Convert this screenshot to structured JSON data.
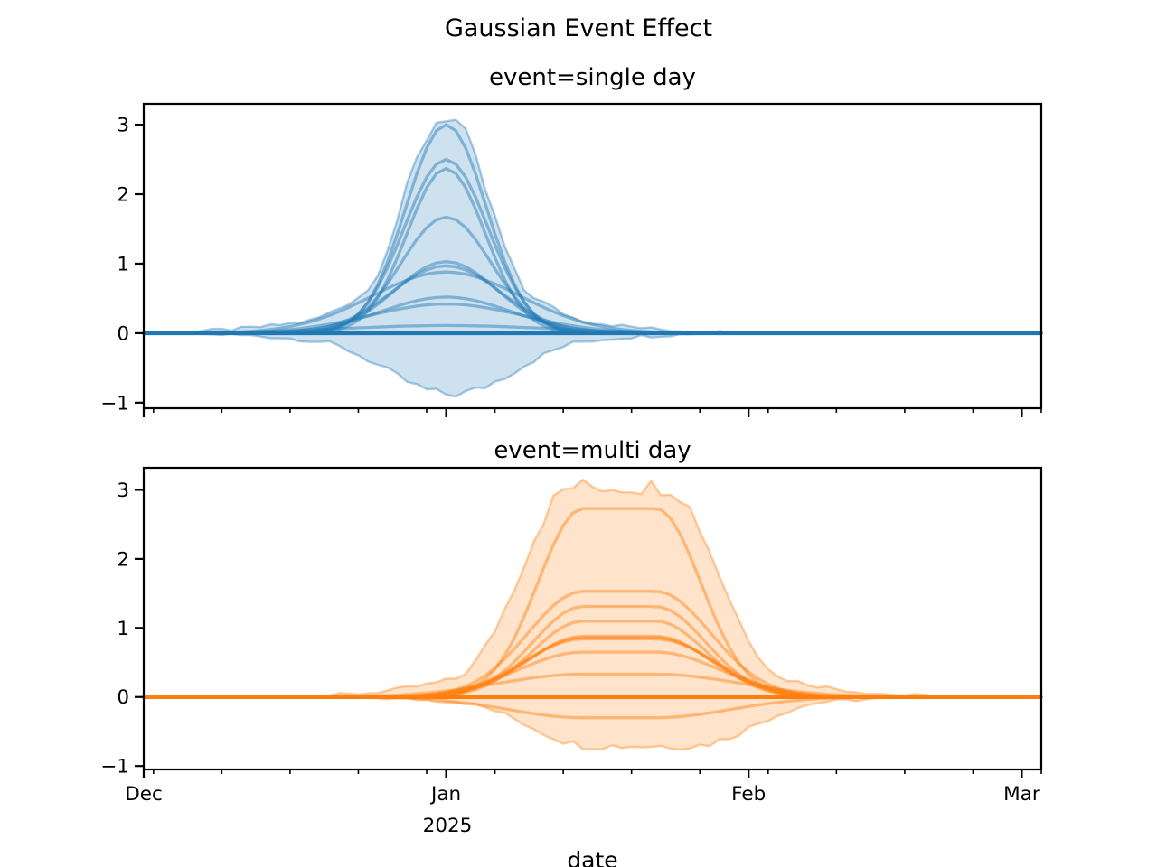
{
  "figure": {
    "background": "#ffffff",
    "text_color": "#000000"
  },
  "chart_data": {
    "type": "line",
    "title": "Gaussian Event Effect",
    "xlabel": "date",
    "legend": "none",
    "grid": false,
    "x_axis": {
      "start_date": "2024-12-01",
      "range_days": [
        0,
        92
      ],
      "major_ticks": [
        {
          "day": 0,
          "label": "Dec"
        },
        {
          "day": 31,
          "label": "Jan"
        },
        {
          "day": 62,
          "label": "Feb"
        },
        {
          "day": 90,
          "label": "Mar"
        }
      ],
      "minor_tick_days": [
        1,
        8,
        15,
        22,
        29,
        36,
        43,
        50,
        57,
        64,
        71,
        78,
        85,
        92
      ],
      "year_offset_label": "2025"
    },
    "y_axis": {
      "ticks": [
        -1,
        0,
        1,
        2,
        3
      ]
    },
    "subplots": [
      {
        "title": "event=single day",
        "color": "#1f77b4",
        "ylim": [
          -1.08,
          3.3
        ],
        "event_kind": "single day",
        "event_center_date": "2025-01-01",
        "event_window_days": [
          31,
          31
        ],
        "baseline_value": 0,
        "samples": [
          {
            "peak": 3.0,
            "sigma_days": 4.1
          },
          {
            "peak": 2.5,
            "sigma_days": 4.3
          },
          {
            "peak": 2.37,
            "sigma_days": 4.0
          },
          {
            "peak": 1.67,
            "sigma_days": 4.6
          },
          {
            "peak": 1.03,
            "sigma_days": 5.2
          },
          {
            "peak": 0.97,
            "sigma_days": 5.6
          },
          {
            "peak": 0.88,
            "sigma_days": 7.6
          },
          {
            "peak": 0.52,
            "sigma_days": 6.6
          },
          {
            "peak": 0.42,
            "sigma_days": 7.8
          },
          {
            "peak": 0.11,
            "sigma_days": 10.5
          }
        ],
        "envelope": {
          "upper_peak": 3.13,
          "lower_peak": -0.88,
          "upper_components": [
            {
              "peak": 3.13,
              "sigma_days": 4.4,
              "window": [
                31,
                31
              ]
            },
            {
              "peak": 1.15,
              "sigma_days": 7.2,
              "window": [
                31,
                31
              ]
            },
            {
              "peak": 0.4,
              "sigma_days": 11.0,
              "window": [
                31,
                31
              ]
            }
          ],
          "lower_components": [
            {
              "peak": -0.88,
              "sigma_days": 6.6,
              "window": [
                31.5,
                31.5
              ]
            },
            {
              "peak": -0.3,
              "sigma_days": 10.0,
              "window": [
                31.5,
                31.5
              ]
            }
          ]
        }
      },
      {
        "title": "event=multi day",
        "color": "#ff7f0e",
        "ylim": [
          -1.05,
          3.32
        ],
        "event_kind": "multi day",
        "event_window_days": [
          45,
          52.5
        ],
        "baseline_value": 0,
        "samples": [
          {
            "peak": 2.73,
            "sigma_days": 4.6
          },
          {
            "peak": 1.53,
            "sigma_days": 5.6
          },
          {
            "peak": 1.31,
            "sigma_days": 5.1
          },
          {
            "peak": 1.1,
            "sigma_days": 5.1
          },
          {
            "peak": 0.88,
            "sigma_days": 5.6
          },
          {
            "peak": 0.86,
            "sigma_days": 5.8
          },
          {
            "peak": 0.84,
            "sigma_days": 6.1
          },
          {
            "peak": 0.65,
            "sigma_days": 6.6
          },
          {
            "peak": 0.33,
            "sigma_days": 8.6
          },
          {
            "peak": -0.3,
            "sigma_days": 7.6
          }
        ],
        "envelope": {
          "upper_peak": 3.05,
          "lower_peak": -0.71,
          "upper_components": [
            {
              "peak": 3.05,
              "sigma_days": 5.3,
              "window": [
                44,
                53.5
              ]
            },
            {
              "peak": 0.55,
              "sigma_days": 10.0,
              "window": [
                44,
                53.5
              ]
            }
          ],
          "lower_components": [
            {
              "peak": -0.71,
              "sigma_days": 6.3,
              "window": [
                46,
                56
              ]
            },
            {
              "peak": -0.18,
              "sigma_days": 10.0,
              "window": [
                46,
                56
              ]
            }
          ]
        }
      }
    ]
  }
}
